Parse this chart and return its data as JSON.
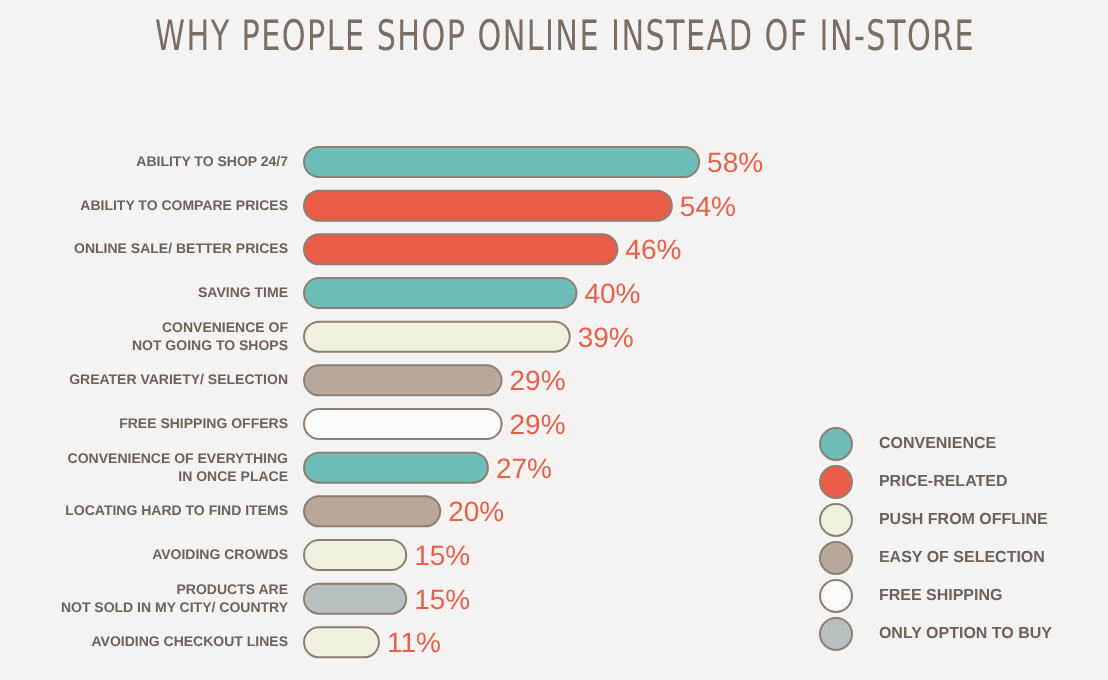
{
  "chart_data": {
    "type": "bar",
    "orientation": "horizontal",
    "stacked": true,
    "title": "WHY PEOPLE SHOP ONLINE INSTEAD OF IN-STORE",
    "legend": "bottom right",
    "categories": [
      "ABILITY TO SHOP 24/7",
      "ABILITY TO COMPARE PRICES",
      "ONLINE SALE/ BETTER PRICES",
      "SAVING TIME",
      "CONVENIENCE OF\nNOT GOING TO SHOPS",
      "GREATER VARIETY/ SELECTION",
      "FREE SHIPPING OFFERS",
      "CONVENIENCE OF EVERYTHING\nIN ONCE PLACE",
      "LOCATING HARD TO FIND ITEMS",
      "AVOIDING CROWDS",
      "PRODUCTS ARE\nNOT SOLD IN MY CITY/ COUNTRY",
      "AVOIDING CHECKOUT LINES"
    ],
    "series": [
      {
        "name": "CONVENIENCE",
        "color": "#6dbdb9",
        "values": [
          58,
          null,
          null,
          40,
          null,
          null,
          null,
          27,
          null,
          null,
          null,
          null
        ],
        "value_labels": [
          "58%",
          null,
          null,
          "40%",
          null,
          null,
          null,
          "27%",
          null,
          null,
          null,
          null
        ]
      },
      {
        "name": "PRICE-RELATED",
        "color": "#e85c48",
        "values": [
          null,
          54,
          46,
          null,
          null,
          null,
          null,
          null,
          null,
          null,
          null,
          null
        ],
        "value_labels": [
          null,
          "54%",
          "46%",
          null,
          null,
          null,
          null,
          null,
          null,
          null,
          null,
          null
        ]
      },
      {
        "name": "PUSH FROM OFFLINE",
        "color": "#f0f0de",
        "values": [
          null,
          null,
          null,
          null,
          39,
          null,
          null,
          null,
          null,
          15,
          null,
          11
        ],
        "value_labels": [
          null,
          null,
          null,
          null,
          "39%",
          null,
          null,
          null,
          null,
          "15%",
          null,
          "11%"
        ]
      },
      {
        "name": "EASY OF SELECTION",
        "color": "#b8a89a",
        "values": [
          null,
          null,
          null,
          null,
          null,
          29,
          null,
          null,
          20,
          null,
          null,
          null
        ],
        "value_labels": [
          null,
          null,
          null,
          null,
          null,
          "29%",
          null,
          null,
          "20%",
          null,
          null,
          null
        ]
      },
      {
        "name": "FREE SHIPPING",
        "color": "#fbfbfa",
        "values": [
          null,
          null,
          null,
          null,
          null,
          null,
          29,
          null,
          null,
          null,
          null,
          null
        ],
        "value_labels": [
          null,
          null,
          null,
          null,
          null,
          null,
          "29%",
          null,
          null,
          null,
          null,
          null
        ]
      },
      {
        "name": "ONLY OPTION TO BUY",
        "color": "#b9c1c0",
        "values": [
          null,
          null,
          null,
          null,
          null,
          null,
          null,
          null,
          null,
          null,
          15,
          null
        ],
        "value_labels": [
          null,
          null,
          null,
          null,
          null,
          null,
          null,
          null,
          null,
          null,
          "15%",
          null
        ]
      }
    ]
  }
}
